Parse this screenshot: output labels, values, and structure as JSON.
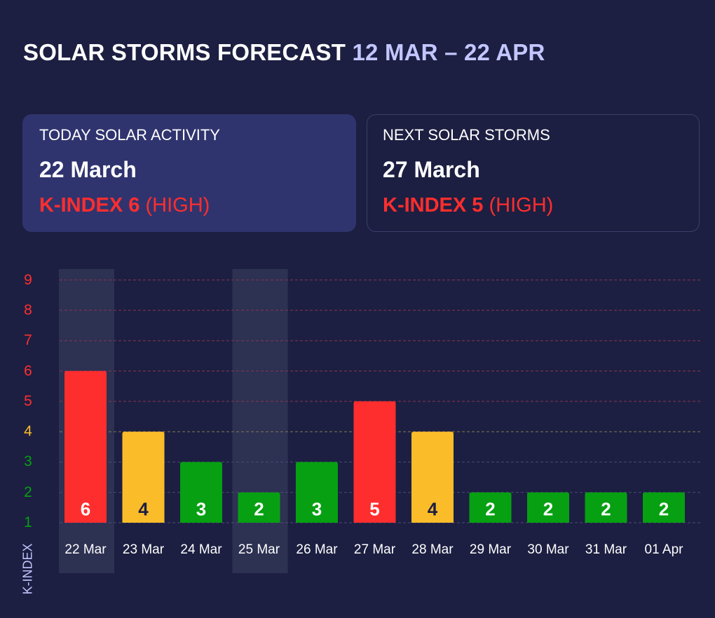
{
  "header": {
    "title": "SOLAR STORMS FORECAST",
    "range": "12 MAR – 22 APR"
  },
  "today": {
    "label": "TODAY SOLAR ACTIVITY",
    "date": "22 March",
    "kindex": "K-INDEX 6",
    "level": "(HIGH)"
  },
  "next": {
    "label": "NEXT SOLAR STORMS",
    "date": "27 March",
    "kindex": "K-INDEX 5",
    "level": "(HIGH)"
  },
  "colors": {
    "high": "#ff2e2e",
    "moderate": "#fbbc2a",
    "low": "#06a012",
    "highlight": "#2d3152"
  },
  "chart_data": {
    "type": "bar",
    "ylabel": "K-INDEX",
    "ylim": [
      1,
      9
    ],
    "yticks": [
      "1",
      "2",
      "3",
      "4",
      "5",
      "6",
      "7",
      "8",
      "9"
    ],
    "categories": [
      "22 Mar",
      "23 Mar",
      "24 Mar",
      "25 Mar",
      "26 Mar",
      "27 Mar",
      "28 Mar",
      "29 Mar",
      "30 Mar",
      "31 Mar",
      "01 Apr"
    ],
    "values": [
      6,
      4,
      3,
      2,
      3,
      5,
      4,
      2,
      2,
      2,
      2
    ],
    "highlighted": [
      "22 Mar",
      "25 Mar"
    ],
    "grid": true
  }
}
